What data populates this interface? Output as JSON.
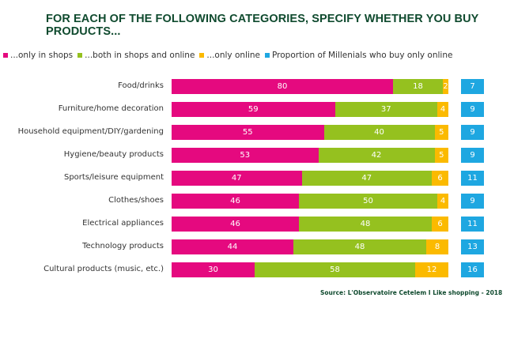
{
  "chart_data": {
    "type": "bar",
    "stacked": true,
    "orientation": "horizontal",
    "title": "FOR EACH OF THE FOLLOWING CATEGORIES, SPECIFY WHETHER YOU BUY PRODUCTS...",
    "categories": [
      "Food/drinks",
      "Furniture/home decoration",
      "Household equipment/DIY/gardening",
      "Hygiene/beauty products",
      "Sports/leisure equipment",
      "Clothes/shoes",
      "Electrical appliances",
      "Technology products",
      "Cultural products (music, etc.)"
    ],
    "series": [
      {
        "name": "...only in shops",
        "color": "#e5097f",
        "values": [
          80,
          59,
          55,
          53,
          47,
          46,
          46,
          44,
          30
        ]
      },
      {
        "name": "...both in shops and online",
        "color": "#95c11f",
        "values": [
          18,
          37,
          40,
          42,
          47,
          50,
          48,
          48,
          58
        ]
      },
      {
        "name": "...only online",
        "color": "#fbba00",
        "values": [
          2,
          4,
          5,
          5,
          6,
          4,
          6,
          8,
          12
        ]
      }
    ],
    "extra_series": {
      "name": "Proportion of Millenials who buy only online",
      "color": "#1ea7e1",
      "values": [
        7,
        9,
        9,
        9,
        11,
        9,
        11,
        13,
        16
      ]
    },
    "xlim": [
      0,
      100
    ],
    "grid": false,
    "legend": "top",
    "source": "Source: L'Observatoire Cetelem I Like shopping - 2018"
  }
}
